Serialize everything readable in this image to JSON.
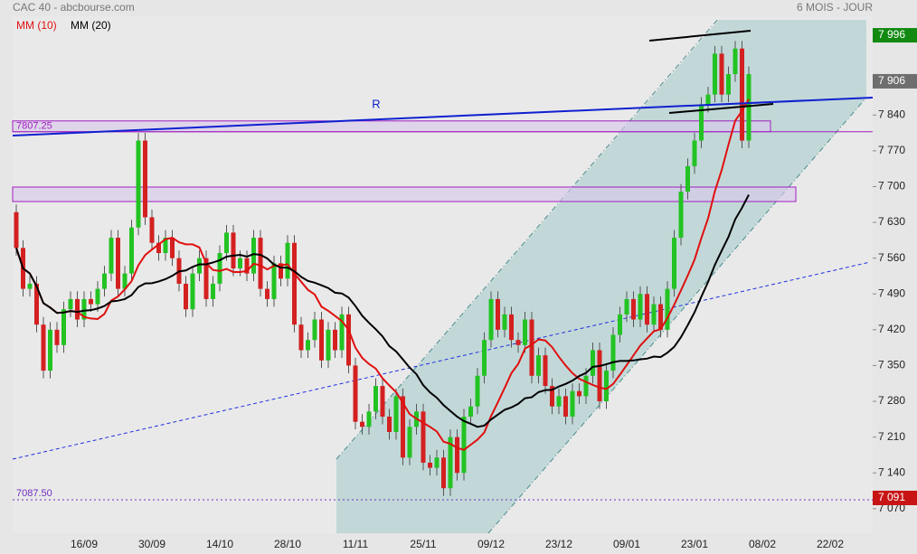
{
  "chart_data": {
    "type": "candlestick",
    "title": "CAC 40 - abcbourse.com",
    "period": "6 MOIS - JOUR",
    "trendline_label": "R",
    "up_color": "#22c322",
    "down_color": "#d42020",
    "ylim": [
      7022,
      8065
    ],
    "yticks": [
      {
        "value": 7070,
        "label": "7 070"
      },
      {
        "value": 7140,
        "label": "7 140"
      },
      {
        "value": 7210,
        "label": "7 210"
      },
      {
        "value": 7280,
        "label": "7 280"
      },
      {
        "value": 7350,
        "label": "7 350"
      },
      {
        "value": 7420,
        "label": "7 420"
      },
      {
        "value": 7490,
        "label": "7 490"
      },
      {
        "value": 7560,
        "label": "7 560"
      },
      {
        "value": 7630,
        "label": "7 630"
      },
      {
        "value": 7700,
        "label": "7 700"
      },
      {
        "value": 7770,
        "label": "7 770"
      },
      {
        "value": 7840,
        "label": "7 840"
      },
      {
        "value": 7910,
        "label": "7 910"
      }
    ],
    "moving_averages": [
      {
        "name": "MM (10)",
        "period": 10,
        "color": "#e01010"
      },
      {
        "name": "MM (20)",
        "period": 20,
        "color": "#000000"
      }
    ],
    "levels": [
      {
        "value": 7807.25,
        "label": "7807.25",
        "color": "#a020c0"
      },
      {
        "value": 7087.5,
        "label": "7087.50",
        "color": "#7030c0"
      }
    ],
    "price_tags": [
      {
        "value": 7996,
        "label": "7 996",
        "color": "#128a12"
      },
      {
        "value": 7906,
        "label": "7 906",
        "color": "#6e6e6e"
      },
      {
        "value": 7091,
        "label": "7 091",
        "color": "#c81414"
      }
    ],
    "categories": [
      null,
      null,
      null,
      null,
      null,
      null,
      null,
      null,
      null,
      null,
      "16/09",
      null,
      null,
      null,
      null,
      null,
      null,
      null,
      null,
      null,
      "30/09",
      null,
      null,
      null,
      null,
      null,
      null,
      null,
      null,
      null,
      "14/10",
      null,
      null,
      null,
      null,
      null,
      null,
      null,
      null,
      null,
      "28/10",
      null,
      null,
      null,
      null,
      null,
      null,
      null,
      null,
      null,
      "11/11",
      null,
      null,
      null,
      null,
      null,
      null,
      null,
      null,
      null,
      "25/11",
      null,
      null,
      null,
      null,
      null,
      null,
      null,
      null,
      null,
      "09/12",
      null,
      null,
      null,
      null,
      null,
      null,
      null,
      null,
      null,
      "23/12",
      null,
      null,
      null,
      null,
      null,
      null,
      null,
      null,
      null,
      "09/01",
      null,
      null,
      null,
      null,
      null,
      null,
      null,
      null,
      null,
      "23/01",
      null,
      null,
      null,
      null,
      null,
      null,
      null,
      null,
      null,
      "08/02",
      null,
      null,
      null,
      null,
      null,
      null,
      null,
      null,
      null,
      "22/02",
      null,
      null,
      null,
      null,
      null,
      null
    ],
    "open": [
      7650,
      7580,
      7500,
      7510,
      7430,
      7340,
      7420,
      7390,
      7460,
      7480,
      7440,
      7480,
      7470,
      7500,
      7530,
      7600,
      7500,
      7530,
      7620,
      7790,
      7640,
      7590,
      7570,
      7600,
      7560,
      7510,
      7460,
      7530,
      7560,
      7480,
      7510,
      7570,
      7610,
      7540,
      7560,
      7530,
      7600,
      7500,
      7480,
      7550,
      7520,
      7590,
      7430,
      7380,
      7400,
      7440,
      7360,
      7420,
      7380,
      7450,
      7350,
      7240,
      7230,
      7260,
      7310,
      7250,
      7220,
      7290,
      7170,
      7230,
      7260,
      7160,
      7150,
      7170,
      7110,
      7210,
      7140,
      7250,
      7270,
      7330,
      7400,
      7480,
      7420,
      7450,
      7400,
      7390,
      7440,
      7330,
      7370,
      7310,
      7270,
      7290,
      7250,
      7300,
      7290,
      7330,
      7380,
      7280,
      7340,
      7410,
      7450,
      7480,
      7440,
      7490,
      7430,
      7470,
      7420,
      7500,
      7600,
      7690,
      7740,
      7790,
      7860,
      7880,
      7960,
      7880,
      7920,
      7970,
      7790,
      null,
      null,
      null,
      null,
      null,
      null,
      null,
      null,
      null,
      null,
      null,
      null,
      null,
      null,
      null,
      null,
      null,
      null
    ],
    "high": [
      7665,
      7595,
      7525,
      7525,
      7445,
      7435,
      7435,
      7475,
      7495,
      7495,
      7495,
      7495,
      7515,
      7545,
      7615,
      7615,
      7545,
      7635,
      7805,
      7805,
      7655,
      7605,
      7615,
      7615,
      7575,
      7525,
      7545,
      7575,
      7575,
      7525,
      7585,
      7625,
      7625,
      7575,
      7575,
      7615,
      7615,
      7515,
      7565,
      7565,
      7605,
      7605,
      7445,
      7415,
      7455,
      7455,
      7435,
      7435,
      7465,
      7465,
      7365,
      7255,
      7275,
      7325,
      7325,
      7265,
      7305,
      7305,
      7245,
      7275,
      7275,
      7175,
      7185,
      7185,
      7225,
      7225,
      7265,
      7285,
      7345,
      7415,
      7495,
      7495,
      7465,
      7465,
      7415,
      7455,
      7455,
      7385,
      7385,
      7325,
      7305,
      7305,
      7315,
      7315,
      7345,
      7395,
      7395,
      7355,
      7425,
      7465,
      7495,
      7495,
      7505,
      7505,
      7485,
      7485,
      7515,
      7615,
      7705,
      7755,
      7805,
      7875,
      7895,
      7975,
      7975,
      7935,
      7985,
      7985,
      7935,
      null,
      null,
      null,
      null,
      null,
      null,
      null,
      null,
      null,
      null,
      null,
      null,
      null,
      null,
      null,
      null,
      null,
      null
    ],
    "low": [
      7565,
      7485,
      7485,
      7415,
      7325,
      7325,
      7375,
      7375,
      7445,
      7425,
      7425,
      7455,
      7455,
      7485,
      7515,
      7485,
      7485,
      7515,
      7605,
      7625,
      7575,
      7555,
      7555,
      7545,
      7495,
      7445,
      7445,
      7515,
      7465,
      7465,
      7495,
      7555,
      7525,
      7525,
      7515,
      7515,
      7485,
      7465,
      7465,
      7505,
      7505,
      7415,
      7365,
      7365,
      7385,
      7345,
      7345,
      7365,
      7365,
      7335,
      7225,
      7215,
      7215,
      7245,
      7235,
      7205,
      7205,
      7155,
      7155,
      7215,
      7145,
      7135,
      7135,
      7095,
      7095,
      7125,
      7125,
      7235,
      7255,
      7315,
      7385,
      7405,
      7405,
      7385,
      7375,
      7375,
      7315,
      7315,
      7295,
      7255,
      7255,
      7235,
      7235,
      7275,
      7275,
      7315,
      7265,
      7265,
      7325,
      7395,
      7435,
      7425,
      7425,
      7415,
      7415,
      7405,
      7405,
      7485,
      7585,
      7675,
      7725,
      7775,
      7845,
      7865,
      7865,
      7865,
      7905,
      7775,
      7775,
      null,
      null,
      null,
      null,
      null,
      null,
      null,
      null,
      null,
      null,
      null,
      null,
      null,
      null,
      null,
      null,
      null,
      null
    ],
    "close": [
      7580,
      7500,
      7510,
      7430,
      7340,
      7420,
      7390,
      7460,
      7480,
      7440,
      7480,
      7470,
      7500,
      7530,
      7600,
      7500,
      7530,
      7620,
      7790,
      7640,
      7590,
      7570,
      7600,
      7560,
      7510,
      7460,
      7530,
      7560,
      7480,
      7510,
      7570,
      7610,
      7540,
      7560,
      7530,
      7600,
      7500,
      7480,
      7550,
      7520,
      7590,
      7430,
      7380,
      7400,
      7440,
      7360,
      7420,
      7380,
      7450,
      7350,
      7240,
      7230,
      7260,
      7310,
      7250,
      7220,
      7290,
      7170,
      7230,
      7260,
      7160,
      7150,
      7170,
      7110,
      7210,
      7140,
      7250,
      7270,
      7330,
      7400,
      7480,
      7420,
      7450,
      7400,
      7390,
      7440,
      7330,
      7370,
      7310,
      7270,
      7290,
      7250,
      7300,
      7290,
      7330,
      7380,
      7280,
      7340,
      7410,
      7450,
      7480,
      7440,
      7490,
      7430,
      7470,
      7420,
      7500,
      7600,
      7690,
      7740,
      7790,
      7860,
      7880,
      7960,
      7880,
      7920,
      7970,
      7790,
      7920,
      null,
      null,
      null,
      null,
      null,
      null,
      null,
      null,
      null,
      null,
      null,
      null,
      null,
      null,
      null,
      null,
      null,
      null
    ]
  }
}
